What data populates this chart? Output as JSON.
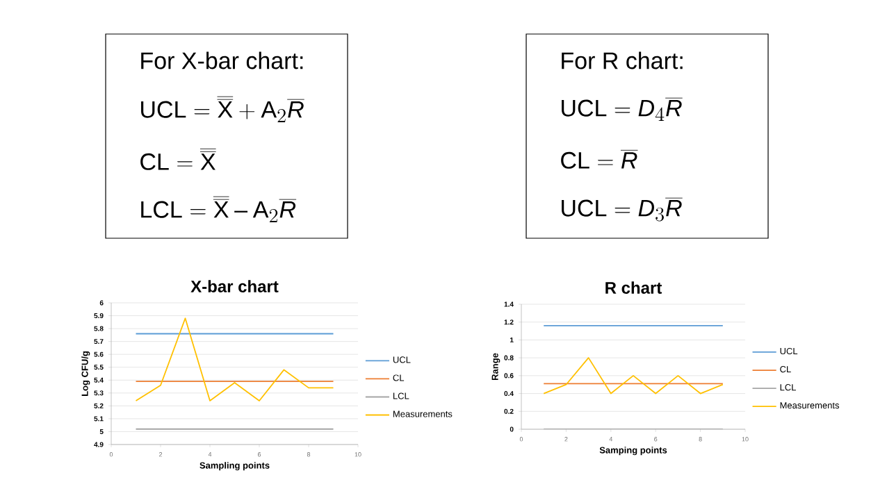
{
  "chart_data": [
    {
      "type": "other",
      "title": "For X-bar chart:",
      "annotations": [
        "\\mathrm{UCL} = \\overline{\\overline{\\mathrm{X}}} + \\mathrm{A}_2\\overline{R}",
        "\\mathrm{CL}= \\overline{\\overline{\\mathrm{X}}}",
        "\\mathrm{LCL}=\\overline{\\overline{\\mathrm{X}}} - \\mathrm{A}_2\\overline{R}"
      ]
    },
    {
      "type": "other",
      "title": "For R chart:",
      "annotations": [
        "\\mathrm{UCL} = D_4\\overline{R}",
        "\\mathrm{CL} = \\overline{R}",
        "\\mathrm{UCL} = D_3\\overline{R}"
      ]
    },
    {
      "type": "line",
      "title": "X-bar chart",
      "xlabel": "Sampling points",
      "ylabel": "Log CFU/g",
      "x": [
        1,
        2,
        3,
        4,
        5,
        6,
        7,
        8,
        9
      ],
      "series": [
        {
          "name": "UCL",
          "color": "#5b9bd5",
          "values": [
            5.76,
            5.76,
            5.76,
            5.76,
            5.76,
            5.76,
            5.76,
            5.76,
            5.76
          ]
        },
        {
          "name": "CL",
          "color": "#ed7d31",
          "values": [
            5.39,
            5.39,
            5.39,
            5.39,
            5.39,
            5.39,
            5.39,
            5.39,
            5.39
          ]
        },
        {
          "name": "LCL",
          "color": "#a5a5a5",
          "values": [
            5.02,
            5.02,
            5.02,
            5.02,
            5.02,
            5.02,
            5.02,
            5.02,
            5.02
          ]
        },
        {
          "name": "Measurements",
          "color": "#ffc000",
          "values": [
            5.24,
            5.36,
            5.88,
            5.24,
            5.38,
            5.24,
            5.48,
            5.34,
            5.34
          ]
        }
      ],
      "xlim": [
        0,
        10
      ],
      "xticks": [
        0,
        2,
        4,
        6,
        8,
        10
      ],
      "ylim": [
        4.9,
        6
      ],
      "yticks": [
        4.9,
        5,
        5.1,
        5.2,
        5.3,
        5.4,
        5.5,
        5.6,
        5.7,
        5.8,
        5.9,
        6
      ],
      "grid": "y",
      "legend": "right"
    },
    {
      "type": "line",
      "title": "R chart",
      "xlabel": "Samping points",
      "ylabel": "Range",
      "x": [
        1,
        2,
        3,
        4,
        5,
        6,
        7,
        8,
        9
      ],
      "series": [
        {
          "name": "UCL",
          "color": "#5b9bd5",
          "values": [
            1.16,
            1.16,
            1.16,
            1.16,
            1.16,
            1.16,
            1.16,
            1.16,
            1.16
          ]
        },
        {
          "name": "CL",
          "color": "#ed7d31",
          "values": [
            0.51,
            0.51,
            0.51,
            0.51,
            0.51,
            0.51,
            0.51,
            0.51,
            0.51
          ]
        },
        {
          "name": "LCL",
          "color": "#a5a5a5",
          "values": [
            0,
            0,
            0,
            0,
            0,
            0,
            0,
            0,
            0
          ]
        },
        {
          "name": "Measurements",
          "color": "#ffc000",
          "values": [
            0.4,
            0.5,
            0.8,
            0.4,
            0.6,
            0.4,
            0.6,
            0.4,
            0.5
          ]
        }
      ],
      "xlim": [
        0,
        10
      ],
      "xticks": [
        0,
        2,
        4,
        6,
        8,
        10
      ],
      "ylim": [
        0,
        1.4
      ],
      "yticks": [
        0,
        0.2,
        0.4,
        0.6,
        0.8,
        1,
        1.2,
        1.4
      ],
      "grid": "y",
      "legend": "right"
    }
  ]
}
